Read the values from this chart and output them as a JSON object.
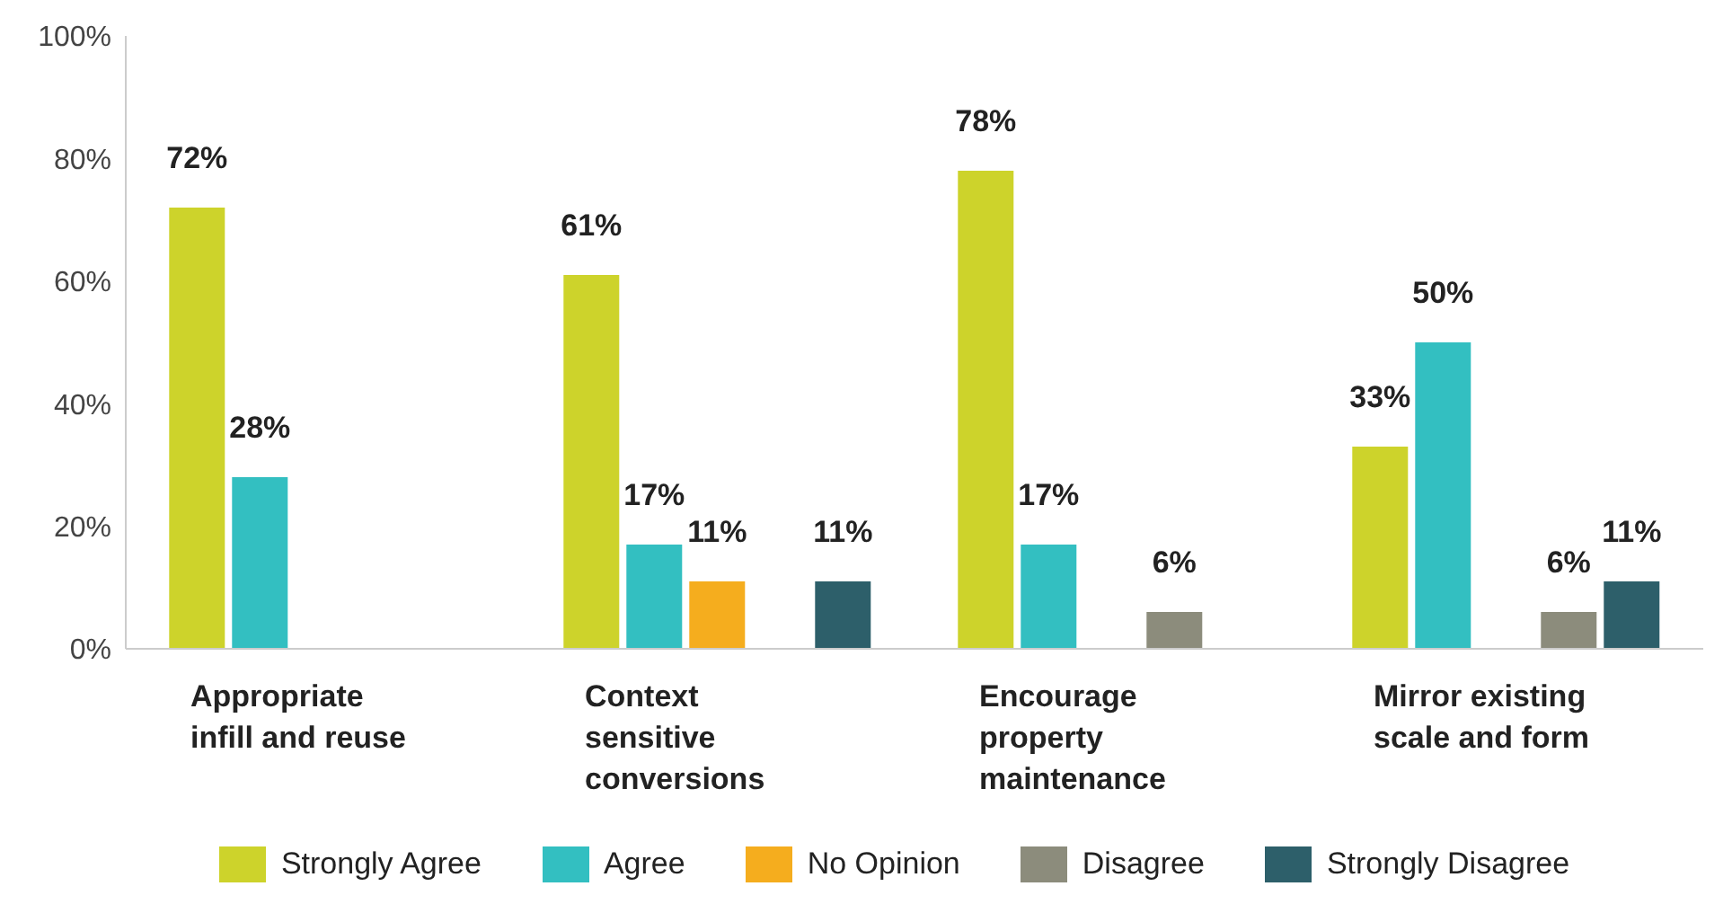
{
  "chart_data": {
    "type": "bar",
    "categories": [
      "Appropriate infill and reuse",
      "Context sensitive conversions",
      "Encourage property maintenance",
      "Mirror existing scale and form"
    ],
    "series": [
      {
        "name": "Strongly Agree",
        "color": "#cdd32b",
        "values": [
          72,
          61,
          78,
          33
        ],
        "value_labels": [
          "72%",
          "61%",
          "78%",
          "33%"
        ]
      },
      {
        "name": "Agree",
        "color": "#33bfc1",
        "values": [
          28,
          17,
          17,
          50
        ],
        "value_labels": [
          "28%",
          "17%",
          "17%",
          "50%"
        ]
      },
      {
        "name": "No Opinion",
        "color": "#f5ad1e",
        "values": [
          null,
          11,
          null,
          null
        ],
        "value_labels": [
          null,
          "11%",
          null,
          null
        ]
      },
      {
        "name": "Disagree",
        "color": "#8c8c7c",
        "values": [
          null,
          null,
          6,
          6
        ],
        "value_labels": [
          null,
          null,
          "6%",
          "6%"
        ]
      },
      {
        "name": "Strongly Disagree",
        "color": "#2d5f6a",
        "values": [
          null,
          11,
          null,
          11
        ],
        "value_labels": [
          null,
          "11%",
          null,
          "11%"
        ]
      }
    ],
    "ylim": [
      0,
      100
    ],
    "yticks": [
      {
        "value": 0,
        "label": "0%"
      },
      {
        "value": 20,
        "label": "20%"
      },
      {
        "value": 40,
        "label": "40%"
      },
      {
        "value": 60,
        "label": "60%"
      },
      {
        "value": 80,
        "label": "80%"
      },
      {
        "value": 100,
        "label": "100%"
      }
    ],
    "grid": false,
    "legend": "bottom"
  }
}
